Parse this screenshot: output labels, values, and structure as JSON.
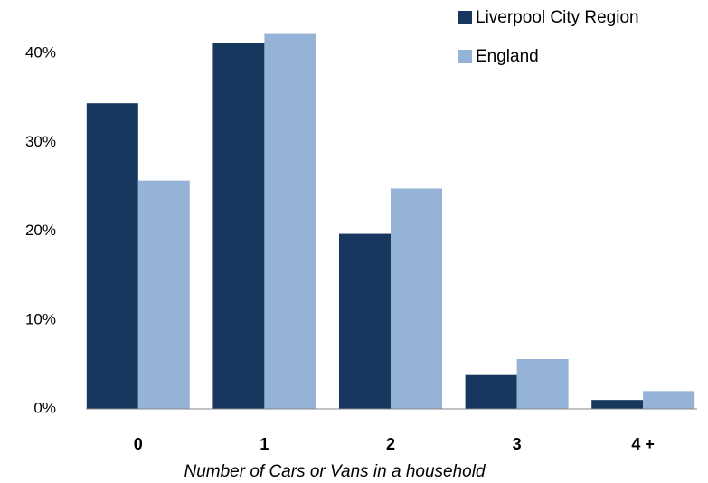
{
  "chart_data": {
    "type": "bar",
    "x_label": "Number of Cars or Vans in a household",
    "categories": [
      "0",
      "1",
      "2",
      "3",
      "4 +"
    ],
    "series": [
      {
        "name": "Liverpool City Region",
        "color": "#17375e",
        "values": [
          34.4,
          41.2,
          19.7,
          3.8,
          1.0
        ]
      },
      {
        "name": "England",
        "color": "#95b3d7",
        "values": [
          25.7,
          42.2,
          24.8,
          5.6,
          2.0
        ]
      }
    ],
    "ylim": [
      0,
      45
    ],
    "yticks": [
      {
        "value": 0,
        "label": "0%"
      },
      {
        "value": 10,
        "label": "10%"
      },
      {
        "value": 20,
        "label": "20%"
      },
      {
        "value": 30,
        "label": "30%"
      },
      {
        "value": 40,
        "label": "40%"
      }
    ],
    "grid": false,
    "legend": "top-right"
  }
}
